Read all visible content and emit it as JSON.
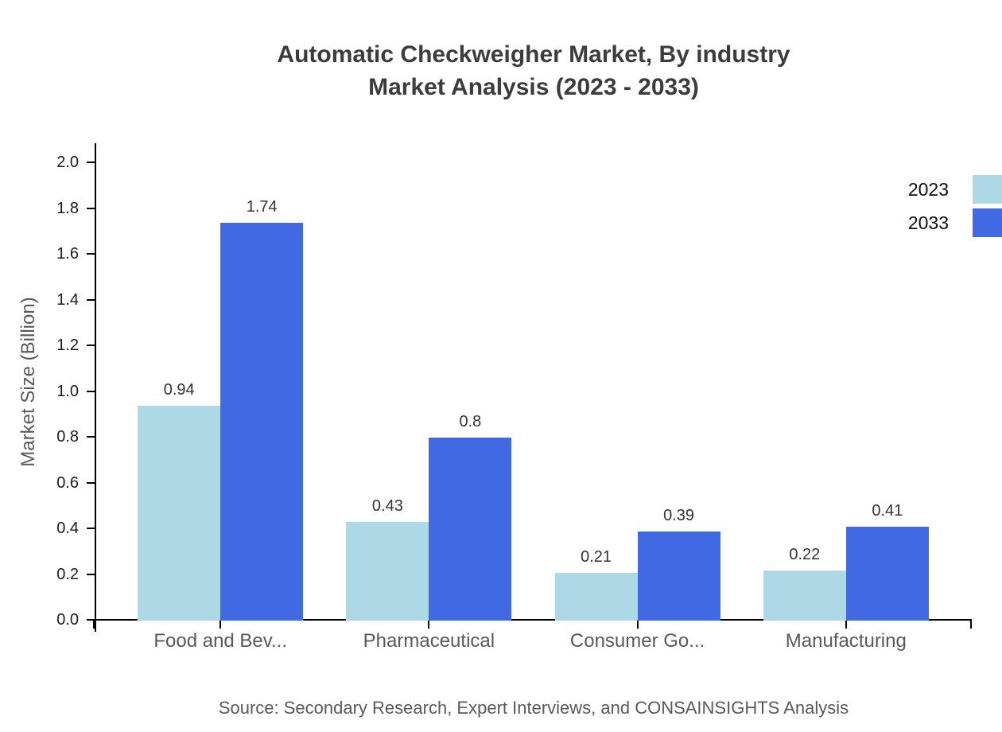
{
  "title": {
    "line1": "Automatic Checkweigher Market, By industry",
    "line2": "Market Analysis (2023 - 2033)"
  },
  "source": {
    "text": "Source: Secondary Research, Expert Interviews, and CONSAINSIGHTS Analysis"
  },
  "chart_data": {
    "type": "bar",
    "title": "Automatic Checkweigher Market, By industry Market Analysis (2023 - 2033)",
    "categories": [
      "Food and Bev...",
      "Pharmaceutical",
      "Consumer Go...",
      "Manufacturing"
    ],
    "series": [
      {
        "name": "2023",
        "color": "#ADD8E6",
        "values": [
          0.94,
          0.43,
          0.21,
          0.22
        ]
      },
      {
        "name": "2033",
        "color": "#4169E1",
        "values": [
          1.74,
          0.8,
          0.39,
          0.41
        ]
      }
    ],
    "xlabel": "",
    "ylabel": "Market Size (Billion)",
    "ylim": [
      0.0,
      2.0
    ],
    "yticks": [
      0.0,
      0.2,
      0.4,
      0.6,
      0.8,
      1.0,
      1.2,
      1.4,
      1.6,
      1.8,
      2.0
    ],
    "grid": false,
    "value_labels": true,
    "legend_position": "top-right",
    "axis_color": "#000000"
  }
}
